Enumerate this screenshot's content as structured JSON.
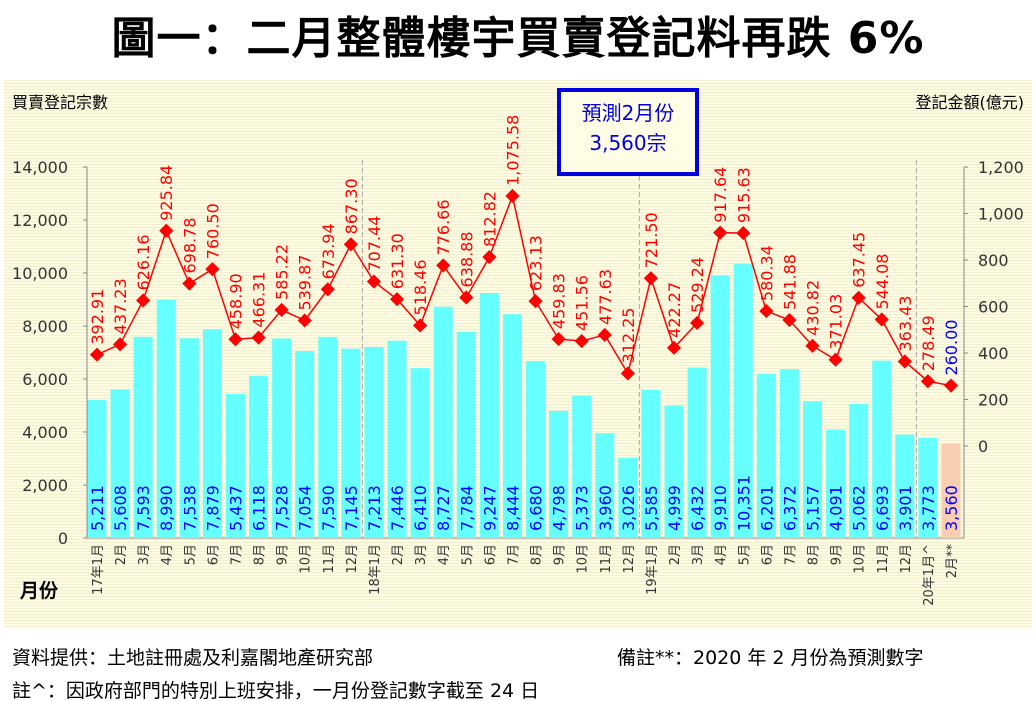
{
  "title": "圖一：二月整體樓宇買賣登記料再跌 6%",
  "forecast_box": {
    "line1": "預測2月份",
    "line2": "3,560宗"
  },
  "footer": {
    "source": "資料提供：土地註冊處及利嘉閣地產研究部",
    "note_forecast": "備註**：2020 年 2 月份為預測數字",
    "note_jan": "註^：因政府部門的特別上班安排，一月份登記數字截至 24 日"
  },
  "chart_data": {
    "type": "bar+line",
    "ylabel_left": "買賣登記宗數",
    "ylabel_right": "登記金額(億元)",
    "xlabel": "月份",
    "ylim_left": [
      0,
      14000
    ],
    "yticks_left": [
      "0",
      "2,000",
      "4,000",
      "6,000",
      "8,000",
      "10,000",
      "12,000",
      "14,000"
    ],
    "ylim_right": [
      0,
      1200
    ],
    "yticks_right": [
      "0",
      "200",
      "400",
      "600",
      "800",
      "1,000",
      "1,200"
    ],
    "categories": [
      "17年1月",
      "2月",
      "3月",
      "4月",
      "5月",
      "6月",
      "7月",
      "8月",
      "9月",
      "10月",
      "11月",
      "12月",
      "18年1月",
      "2月",
      "3月",
      "4月",
      "5月",
      "6月",
      "7月",
      "8月",
      "9月",
      "10月",
      "11月",
      "12月",
      "19年1月",
      "2月",
      "3月",
      "4月",
      "5月",
      "6月",
      "7月",
      "8月",
      "9月",
      "10月",
      "11月",
      "12月",
      "20年1月^",
      "2月**"
    ],
    "series": [
      {
        "name": "買賣登記宗數",
        "type": "bar",
        "color": "#66ffff",
        "forecast_color": "#f8cdb0",
        "label_color": "#0000ff",
        "values": [
          5211,
          5608,
          7593,
          8990,
          7538,
          7879,
          5437,
          6118,
          7528,
          7054,
          7590,
          7145,
          7213,
          7446,
          6410,
          8727,
          7784,
          9247,
          8444,
          6680,
          4798,
          5373,
          3960,
          3026,
          5585,
          4999,
          6432,
          9910,
          10351,
          6201,
          6372,
          5157,
          4091,
          5062,
          6693,
          3901,
          3773,
          3560
        ],
        "labels": [
          "5,211",
          "5,608",
          "7,593",
          "8,990",
          "7,538",
          "7,879",
          "5,437",
          "6,118",
          "7,528",
          "7,054",
          "7,590",
          "7,145",
          "7,213",
          "7,446",
          "6,410",
          "8,727",
          "7,784",
          "9,247",
          "8,444",
          "6,680",
          "4,798",
          "5,373",
          "3,960",
          "3,026",
          "5,585",
          "4,999",
          "6,432",
          "9,910",
          "10,351",
          "6,201",
          "6,372",
          "5,157",
          "4,091",
          "5,062",
          "6,693",
          "3,901",
          "3,773",
          "3,560"
        ]
      },
      {
        "name": "登記金額(億元)",
        "type": "line",
        "color": "#ff0000",
        "forecast_color": "#0000ff",
        "values": [
          392.91,
          437.23,
          626.16,
          925.84,
          698.78,
          760.5,
          458.9,
          466.31,
          585.22,
          539.87,
          673.94,
          867.3,
          707.44,
          631.3,
          518.46,
          776.66,
          638.88,
          812.82,
          1075.58,
          623.13,
          459.83,
          451.56,
          477.63,
          312.25,
          721.5,
          422.27,
          529.24,
          917.64,
          915.63,
          580.34,
          541.88,
          430.82,
          371.03,
          637.45,
          544.08,
          363.43,
          278.49,
          260.0
        ],
        "labels": [
          "392.91",
          "437.23",
          "626.16",
          "925.84",
          "698.78",
          "760.50",
          "458.90",
          "466.31",
          "585.22",
          "539.87",
          "673.94",
          "867.30",
          "707.44",
          "631.30",
          "518.46",
          "776.66",
          "638.88",
          "812.82",
          "1,075.58",
          "623.13",
          "459.83",
          "451.56",
          "477.63",
          "312.25",
          "721.50",
          "422.27",
          "529.24",
          "917.64",
          "915.63",
          "580.34",
          "541.88",
          "430.82",
          "371.03",
          "637.45",
          "544.08",
          "363.43",
          "278.49",
          "260.00"
        ]
      }
    ]
  }
}
